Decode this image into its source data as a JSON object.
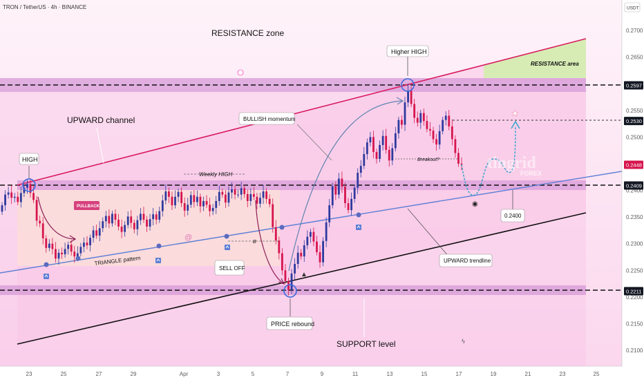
{
  "header": {
    "symbol": "TRON / TetherUS · 4h · BINANCE",
    "currency_badge": "USDT"
  },
  "colors": {
    "bull": "#2e3a9e",
    "bear": "#d6154d",
    "resistance_band": "#d59ad7",
    "resistance_area": "#d7ecb4",
    "channel_fill": "#f9c6e6",
    "triangle_fill": "#fbe0d7",
    "upper_channel_line": "#d81b60",
    "upward_trendline": "#5c7fd6",
    "support_line": "#111111",
    "badge_dark": "#131722"
  },
  "labels": {
    "resistance_zone": "RESISTANCE zone",
    "resistance_area": "RESISTANCE area",
    "higher_high": "Higher HIGH",
    "upward_channel": "UPWARD channel",
    "high": "HIGH",
    "bullish_momentum": "BULLISH momentum",
    "pullback": "PULLBACK",
    "weekly_high": "Weekly HIGH",
    "triangle_pattern": "TRIANGLE pattern",
    "sell_off": "SELL OFF",
    "price_rebound": "PRICE rebound",
    "support_level": "SUPPORT level",
    "upward_trendline": "UPWARD trendline",
    "breakout": "Breakout?",
    "target_value": "0.2400",
    "b_marker": "B",
    "watermark": "tingrid",
    "watermark_sub": "FOREX"
  },
  "chart_data": {
    "type": "candlestick",
    "symbol": "TRON / TetherUS",
    "timeframe": "4h",
    "exchange": "BINANCE",
    "y_ticks": [
      "0.2700",
      "0.2650",
      "0.2600",
      "0.2550",
      "0.2500",
      "0.2450",
      "0.2400",
      "0.2350",
      "0.2300",
      "0.2250",
      "0.2200",
      "0.2150",
      "0.2100"
    ],
    "y_highlight": [
      {
        "value": "0.2597",
        "style": "dark"
      },
      {
        "value": "0.2530",
        "style": "dark"
      },
      {
        "value": "0.2448",
        "style": "bear"
      },
      {
        "value": "0.2409",
        "style": "dark"
      },
      {
        "value": "0.2211",
        "style": "dark"
      }
    ],
    "x_ticks": [
      "23",
      "25",
      "27",
      "29",
      "Apr",
      "3",
      "5",
      "7",
      "9",
      "11",
      "13",
      "15",
      "17",
      "19",
      "21",
      "23",
      "25"
    ],
    "levels": {
      "resistance": 0.2597,
      "pivot": 0.2409,
      "support": 0.2211,
      "breakout_target": 0.253,
      "pullback_target": 0.24
    },
    "closes": [
      0.2372,
      0.2392,
      0.2396,
      0.2386,
      0.2388,
      0.2378,
      0.2395,
      0.2405,
      0.2412,
      0.2395,
      0.2382,
      0.2343,
      0.2338,
      0.231,
      0.2292,
      0.23,
      0.229,
      0.2272,
      0.2283,
      0.228,
      0.229,
      0.2298,
      0.2285,
      0.2276,
      0.2282,
      0.2294,
      0.2302,
      0.2297,
      0.2311,
      0.2325,
      0.2315,
      0.2329,
      0.2342,
      0.2352,
      0.2338,
      0.2356,
      0.2345,
      0.2332,
      0.2322,
      0.2335,
      0.2351,
      0.2339,
      0.2327,
      0.2344,
      0.2356,
      0.2345,
      0.2332,
      0.2346,
      0.2355,
      0.2345,
      0.2361,
      0.2381,
      0.2398,
      0.2388,
      0.2372,
      0.2388,
      0.2397,
      0.2376,
      0.2362,
      0.2373,
      0.2391,
      0.2378,
      0.2388,
      0.237,
      0.238,
      0.2373,
      0.2361,
      0.2367,
      0.238,
      0.2397,
      0.2392,
      0.2377,
      0.2396,
      0.2402,
      0.2392,
      0.2392,
      0.2404,
      0.2393,
      0.238,
      0.2393,
      0.2388,
      0.2375,
      0.2386,
      0.2398,
      0.2384,
      0.2374,
      0.2331,
      0.2306,
      0.2282,
      0.225,
      0.223,
      0.2213,
      0.2244,
      0.2262,
      0.2283,
      0.2276,
      0.2297,
      0.2313,
      0.2322,
      0.2304,
      0.2284,
      0.2265,
      0.2305,
      0.234,
      0.2372,
      0.2408,
      0.2392,
      0.2422,
      0.2407,
      0.2376,
      0.2363,
      0.2384,
      0.2405,
      0.2433,
      0.2446,
      0.2468,
      0.249,
      0.25,
      0.2472,
      0.2459,
      0.2485,
      0.2502,
      0.2476,
      0.2456,
      0.2479,
      0.2507,
      0.2532,
      0.2523,
      0.2565,
      0.2587,
      0.2562,
      0.2536,
      0.2527,
      0.2545,
      0.253,
      0.2515,
      0.2512,
      0.2496,
      0.2486,
      0.2511,
      0.2532,
      0.254,
      0.252,
      0.2496,
      0.247,
      0.245,
      0.2448
    ]
  }
}
